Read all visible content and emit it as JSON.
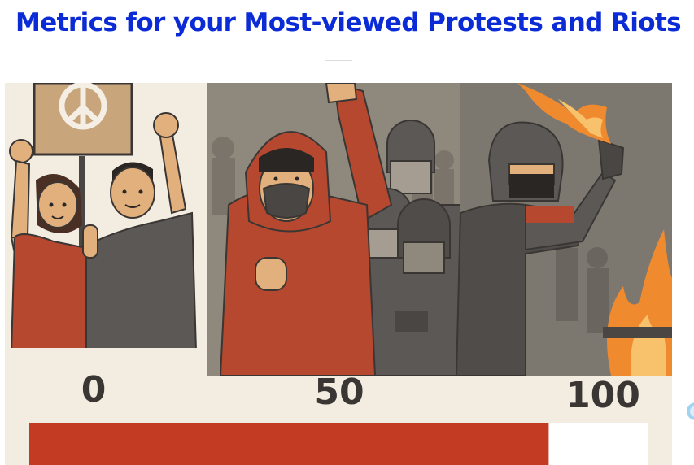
{
  "page": {
    "title": "Metrics for your Most-viewed Protests and Riots"
  },
  "scale": {
    "labels": [
      "0",
      "50",
      "100"
    ],
    "progress_percent": 84
  },
  "colors": {
    "title": "#0a2bd6",
    "bar_fill": "#c23b22",
    "bar_track": "#ffffff",
    "figure_bg": "#f3ece1",
    "panel_gray": "#8f887d",
    "panel_dark": "#5b5856",
    "red_shirt": "#b5482f",
    "skin": "#e2b07d",
    "fire": "#f08a2e"
  },
  "icons": {
    "protest_sign": "peace-sign-icon",
    "edge_widget": "scroll-hint-icon"
  }
}
